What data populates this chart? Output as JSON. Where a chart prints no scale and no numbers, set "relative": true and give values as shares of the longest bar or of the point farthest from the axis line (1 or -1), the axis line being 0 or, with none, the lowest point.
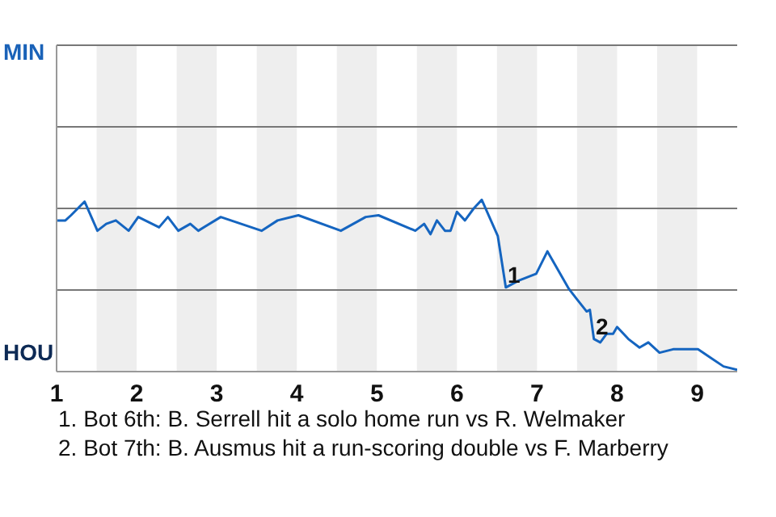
{
  "chart_data": {
    "type": "line",
    "relative": true,
    "x": [
      1.01,
      1.11,
      1.18,
      1.35,
      1.51,
      1.62,
      1.74,
      1.9,
      2.02,
      2.28,
      2.39,
      2.52,
      2.67,
      2.77,
      3.05,
      3.56,
      3.76,
      4.02,
      4.55,
      4.86,
      5.02,
      5.48,
      5.59,
      5.67,
      5.75,
      5.85,
      5.92,
      6,
      6.1,
      6.21,
      6.31,
      6.51,
      6.61,
      6.77,
      6.99,
      7.13,
      7.4,
      7.5,
      7.62,
      7.66,
      7.71,
      7.79,
      7.87,
      7.95,
      8,
      8.14,
      8.28,
      8.39,
      8.53,
      8.7,
      9.01,
      9.17,
      9.33,
      9.5
    ],
    "series": [
      {
        "color": "#1565c0",
        "values": [
          0.88,
          0.88,
          0.91,
          0.99,
          0.82,
          0.86,
          0.88,
          0.82,
          0.9,
          0.84,
          0.9,
          0.82,
          0.86,
          0.82,
          0.9,
          0.82,
          0.88,
          0.91,
          0.82,
          0.9,
          0.91,
          0.82,
          0.86,
          0.8,
          0.88,
          0.82,
          0.82,
          0.93,
          0.88,
          0.95,
          1,
          0.79,
          0.49,
          0.53,
          0.57,
          0.7,
          0.48,
          0.42,
          0.35,
          0.36,
          0.19,
          0.17,
          0.22,
          0.22,
          0.26,
          0.19,
          0.14,
          0.17,
          0.11,
          0.13,
          0.13,
          0.08,
          0.03,
          0.01
        ]
      }
    ],
    "xlim": [
      1,
      9.5
    ],
    "xticks": [
      1,
      2,
      3,
      4,
      5,
      6,
      7,
      8,
      9
    ],
    "ref_lines": [
      {
        "axis": "y",
        "value": 0.475,
        "color": "#777777"
      },
      {
        "axis": "y",
        "value": 0.95,
        "color": "#777777"
      },
      {
        "axis": "y",
        "value": 1.425,
        "color": "#777777"
      },
      {
        "axis": "y",
        "value": 1.9,
        "color": "#777777"
      }
    ],
    "marker": "none",
    "bands": [
      {
        "axis": "x",
        "from": 1.5,
        "to": 2,
        "color": "#eeeeee"
      },
      {
        "axis": "x",
        "from": 2.5,
        "to": 3,
        "color": "#eeeeee"
      },
      {
        "axis": "x",
        "from": 3.5,
        "to": 4,
        "color": "#eeeeee"
      },
      {
        "axis": "x",
        "from": 4.5,
        "to": 5,
        "color": "#eeeeee"
      },
      {
        "axis": "x",
        "from": 5.5,
        "to": 6,
        "color": "#eeeeee"
      },
      {
        "axis": "x",
        "from": 6.5,
        "to": 7,
        "color": "#eeeeee"
      },
      {
        "axis": "x",
        "from": 7.5,
        "to": 8,
        "color": "#eeeeee"
      },
      {
        "axis": "x",
        "from": 8.5,
        "to": 9,
        "color": "#eeeeee"
      }
    ],
    "annotations": [
      "MIN",
      "HOU",
      {
        "text": "1",
        "x": 6.61,
        "y": 0.49
      },
      {
        "text": "2",
        "x": 7.71,
        "y": 0.19
      },
      "1. Bot 6th: B. Serrell hit a solo home run vs R. Welmaker",
      "2. Bot 7th: B. Ausmus hit a run-scoring double vs F. Marberry"
    ]
  }
}
